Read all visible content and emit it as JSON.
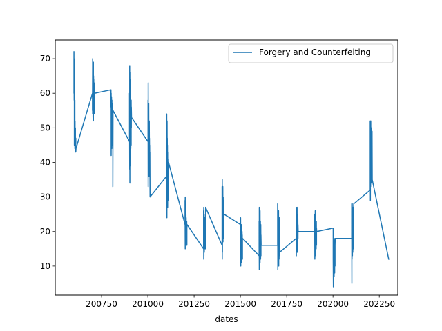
{
  "chart_data": {
    "type": "line",
    "xlabel": "dates",
    "ylabel": "",
    "xlim": [
      200500,
      202350
    ],
    "ylim": [
      1.6,
      75.4
    ],
    "x_ticks": [
      200750,
      201000,
      201250,
      201500,
      201750,
      202000,
      202250
    ],
    "y_ticks": [
      10,
      20,
      30,
      40,
      50,
      60,
      70
    ],
    "grid": false,
    "legend": "top-right",
    "series": [
      {
        "name": "Forgery and Counterfeiting",
        "color": "#1f77b4",
        "x": [
          200601,
          200601,
          200602,
          200602,
          200603,
          200603,
          200604,
          200604,
          200605,
          200605,
          200606,
          200606,
          200607,
          200607,
          200608,
          200608,
          200609,
          200609,
          200610,
          200610,
          200611,
          200611,
          200612,
          200701,
          200701,
          200702,
          200702,
          200703,
          200703,
          200704,
          200704,
          200705,
          200705,
          200706,
          200706,
          200707,
          200707,
          200708,
          200708,
          200709,
          200709,
          200710,
          200710,
          200711,
          200711,
          200712,
          200801,
          200801,
          200802,
          200802,
          200803,
          200803,
          200804,
          200804,
          200805,
          200805,
          200806,
          200806,
          200807,
          200807,
          200808,
          200808,
          200809,
          200809,
          200810,
          200810,
          200811,
          200811,
          200812,
          200901,
          200901,
          200902,
          200902,
          200903,
          200903,
          200904,
          200904,
          200905,
          200905,
          200906,
          200906,
          200907,
          200907,
          200908,
          200908,
          200909,
          200909,
          200910,
          200910,
          200911,
          200911,
          200912,
          201001,
          201001,
          201002,
          201002,
          201003,
          201003,
          201004,
          201004,
          201005,
          201005,
          201006,
          201006,
          201007,
          201007,
          201008,
          201008,
          201009,
          201009,
          201010,
          201010,
          201011,
          201011,
          201012,
          201101,
          201101,
          201102,
          201102,
          201103,
          201103,
          201104,
          201104,
          201105,
          201105,
          201106,
          201106,
          201107,
          201107,
          201108,
          201108,
          201109,
          201109,
          201110,
          201110,
          201111,
          201111,
          201112,
          201201,
          201201,
          201202,
          201202,
          201203,
          201203,
          201204,
          201204,
          201205,
          201205,
          201206,
          201206,
          201207,
          201207,
          201208,
          201208,
          201209,
          201209,
          201210,
          201210,
          201211,
          201211,
          201212,
          201301,
          201301,
          201302,
          201302,
          201303,
          201303,
          201304,
          201304,
          201305,
          201305,
          201306,
          201306,
          201307,
          201307,
          201308,
          201308,
          201309,
          201309,
          201310,
          201310,
          201311,
          201311,
          201312,
          201401,
          201401,
          201402,
          201402,
          201403,
          201403,
          201404,
          201404,
          201405,
          201405,
          201406,
          201406,
          201407,
          201407,
          201408,
          201408,
          201409,
          201409,
          201410,
          201410,
          201411,
          201411,
          201412,
          201501,
          201501,
          201502,
          201502,
          201503,
          201503,
          201504,
          201504,
          201505,
          201505,
          201506,
          201506,
          201507,
          201507,
          201508,
          201508,
          201509,
          201509,
          201510,
          201510,
          201511,
          201511,
          201512,
          201601,
          201601,
          201602,
          201602,
          201603,
          201603,
          201604,
          201604,
          201605,
          201605,
          201606,
          201606,
          201607,
          201607,
          201608,
          201608,
          201609,
          201609,
          201610,
          201610,
          201611,
          201611,
          201612,
          201701,
          201701,
          201702,
          201702,
          201703,
          201703,
          201704,
          201704,
          201705,
          201705,
          201706,
          201706,
          201707,
          201707,
          201708,
          201708,
          201709,
          201709,
          201710,
          201710,
          201711,
          201711,
          201712,
          201801,
          201801,
          201802,
          201802,
          201803,
          201803,
          201804,
          201804,
          201805,
          201805,
          201806,
          201806,
          201807,
          201807,
          201808,
          201808,
          201809,
          201809,
          201810,
          201810,
          201811,
          201811,
          201812,
          201901,
          201901,
          201902,
          201902,
          201903,
          201903,
          201904,
          201904,
          201905,
          201905,
          201906,
          201906,
          201907,
          201907,
          201908,
          201908,
          201909,
          201909,
          201910,
          201910,
          201911,
          201911,
          201912,
          202001,
          202001,
          202002,
          202002,
          202003,
          202003,
          202004,
          202004,
          202005,
          202005,
          202006,
          202006,
          202007,
          202007,
          202008,
          202008,
          202009,
          202009,
          202010,
          202010,
          202011,
          202011,
          202012,
          202101,
          202101,
          202102,
          202102,
          202103,
          202103,
          202104,
          202104,
          202105,
          202105,
          202106,
          202106,
          202107,
          202107,
          202108,
          202108,
          202109,
          202109,
          202110,
          202110,
          202111,
          202111,
          202112,
          202201,
          202201,
          202202,
          202202,
          202203,
          202203,
          202204,
          202204,
          202205,
          202205,
          202206,
          202206,
          202207,
          202207,
          202208,
          202208,
          202209,
          202209,
          202210,
          202210,
          202211,
          202211,
          202212,
          202301
        ],
        "y": [
          72,
          60,
          70,
          58,
          67,
          45,
          62,
          50,
          55,
          46,
          58,
          44,
          52,
          47,
          49,
          45,
          50,
          43,
          46,
          44,
          47,
          43,
          44,
          60,
          55,
          70,
          54,
          66,
          56,
          68,
          53,
          62,
          57,
          69,
          52,
          65,
          58,
          64,
          55,
          60,
          57,
          63,
          54,
          61,
          56,
          60,
          61,
          56,
          60,
          42,
          58,
          45,
          59,
          47,
          56,
          44,
          58,
          48,
          55,
          46,
          57,
          49,
          56,
          45,
          54,
          47,
          52,
          33,
          55,
          46,
          60,
          38,
          68,
          34,
          66,
          40,
          64,
          42,
          58,
          46,
          62,
          39,
          57,
          44,
          55,
          48,
          53,
          45,
          58,
          50,
          56,
          53,
          46,
          58,
          33,
          63,
          37,
          55,
          40,
          52,
          44,
          57,
          38,
          50,
          36,
          49,
          41,
          52,
          39,
          47,
          40,
          45,
          37,
          43,
          30,
          36,
          53,
          26,
          54,
          24,
          49,
          28,
          52,
          30,
          47,
          33,
          45,
          27,
          43,
          31,
          41,
          29,
          39,
          33,
          40,
          31,
          38,
          40,
          22,
          29,
          15,
          30,
          17,
          27,
          19,
          26,
          18,
          28,
          20,
          25,
          16,
          24,
          18,
          23,
          17,
          22,
          19,
          23,
          16,
          21,
          22,
          15,
          26,
          12,
          27,
          13,
          24,
          16,
          25,
          14,
          23,
          18,
          22,
          15,
          21,
          17,
          24,
          16,
          22,
          18,
          23,
          15,
          21,
          27,
          16,
          33,
          12,
          35,
          14,
          31,
          18,
          28,
          20,
          33,
          17,
          26,
          22,
          30,
          19,
          27,
          21,
          29,
          20,
          26,
          18,
          25,
          25,
          22,
          24,
          10,
          22,
          12,
          20,
          14,
          21,
          13,
          19,
          15,
          22,
          11,
          18,
          14,
          17,
          12,
          20,
          13,
          19,
          12,
          18,
          18,
          13,
          23,
          9,
          27,
          10,
          25,
          12,
          22,
          14,
          24,
          11,
          26,
          13,
          21,
          15,
          23,
          12,
          20,
          14,
          22,
          13,
          19,
          16,
          16,
          28,
          9,
          27,
          11,
          24,
          13,
          25,
          12,
          22,
          14,
          26,
          10,
          23,
          13,
          21,
          12,
          20,
          15,
          24,
          13,
          21,
          14,
          18,
          27,
          13,
          26,
          15,
          23,
          17,
          25,
          16,
          22,
          18,
          27,
          14,
          24,
          17,
          21,
          16,
          23,
          15,
          25,
          18,
          22,
          20,
          20,
          25,
          12,
          24,
          14,
          22,
          16,
          26,
          15,
          23,
          17,
          21,
          13,
          24,
          16,
          22,
          15,
          20,
          17,
          23,
          16,
          21,
          20,
          21,
          12,
          4,
          18,
          6,
          15,
          8,
          17,
          10,
          14,
          7,
          18,
          9,
          16,
          12,
          15,
          8,
          17,
          11,
          14,
          10,
          16,
          18,
          18,
          28,
          5,
          27,
          12,
          25,
          15,
          28,
          13,
          23,
          17,
          26,
          14,
          24,
          19,
          27,
          16,
          25,
          18,
          22,
          15,
          26,
          28,
          32,
          52,
          29,
          50,
          33,
          47,
          38,
          52,
          36,
          43,
          40,
          48,
          34,
          45,
          39,
          50,
          37,
          46,
          41,
          44,
          38,
          49,
          35,
          12
        ]
      }
    ]
  }
}
